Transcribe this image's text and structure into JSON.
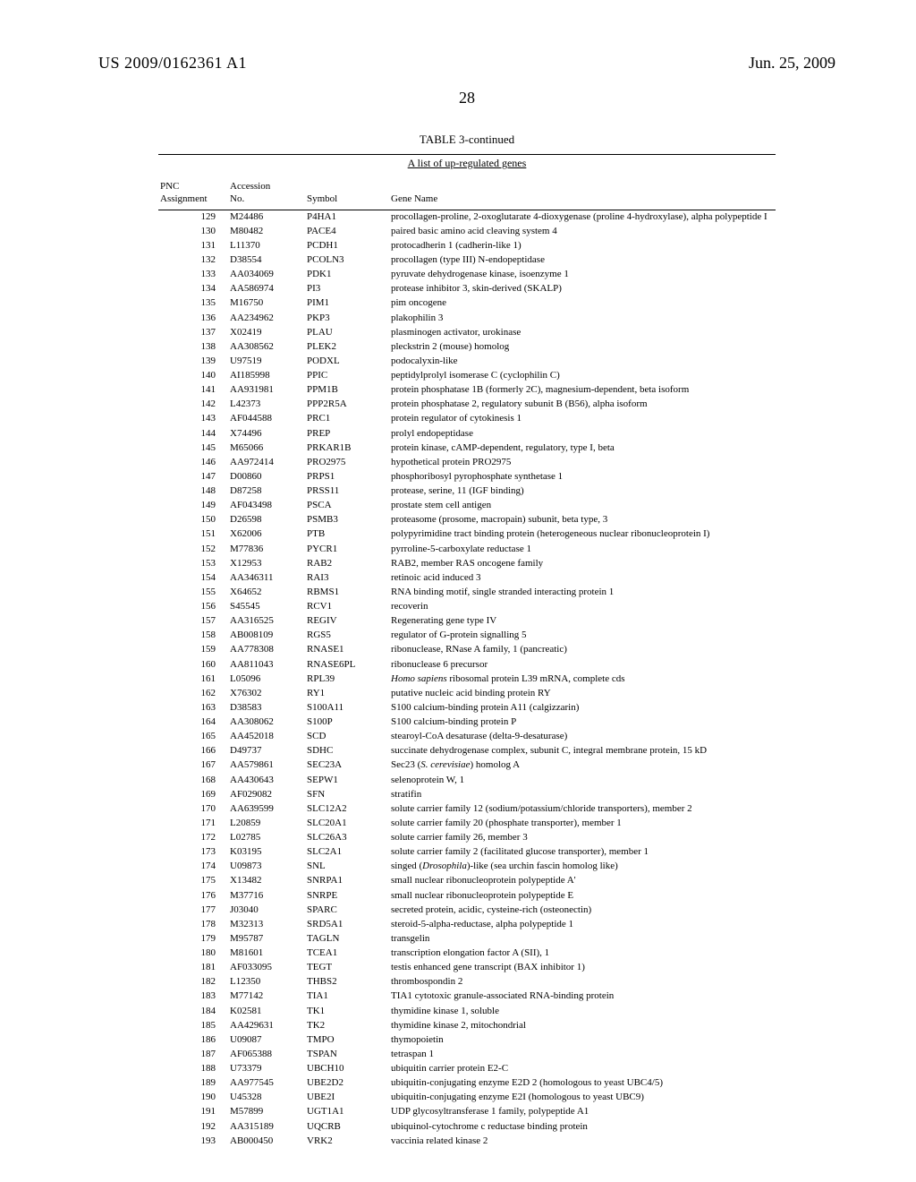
{
  "header": {
    "publication_number": "US 2009/0162361 A1",
    "date": "Jun. 25, 2009",
    "page_number": "28"
  },
  "table": {
    "title": "TABLE 3-continued",
    "subtitle": "A list of up-regulated genes",
    "columns": {
      "pnc": "PNC\nAssignment",
      "accession": "Accession\nNo.",
      "symbol": "Symbol",
      "gene_name": "Gene Name"
    },
    "rows": [
      {
        "pnc": "129",
        "acc": "M24486",
        "sym": "P4HA1",
        "name": "procollagen-proline, 2-oxoglutarate 4-dioxygenase (proline 4-hydroxylase), alpha polypeptide I"
      },
      {
        "pnc": "130",
        "acc": "M80482",
        "sym": "PACE4",
        "name": "paired basic amino acid cleaving system 4"
      },
      {
        "pnc": "131",
        "acc": "L11370",
        "sym": "PCDH1",
        "name": "protocadherin 1 (cadherin-like 1)"
      },
      {
        "pnc": "132",
        "acc": "D38554",
        "sym": "PCOLN3",
        "name": "procollagen (type III) N-endopeptidase"
      },
      {
        "pnc": "133",
        "acc": "AA034069",
        "sym": "PDK1",
        "name": "pyruvate dehydrogenase kinase, isoenzyme 1"
      },
      {
        "pnc": "134",
        "acc": "AA586974",
        "sym": "PI3",
        "name": "protease inhibitor 3, skin-derived (SKALP)"
      },
      {
        "pnc": "135",
        "acc": "M16750",
        "sym": "PIM1",
        "name": "pim oncogene"
      },
      {
        "pnc": "136",
        "acc": "AA234962",
        "sym": "PKP3",
        "name": "plakophilin 3"
      },
      {
        "pnc": "137",
        "acc": "X02419",
        "sym": "PLAU",
        "name": "plasminogen activator, urokinase"
      },
      {
        "pnc": "138",
        "acc": "AA308562",
        "sym": "PLEK2",
        "name": "pleckstrin 2 (mouse) homolog"
      },
      {
        "pnc": "139",
        "acc": "U97519",
        "sym": "PODXL",
        "name": "podocalyxin-like"
      },
      {
        "pnc": "140",
        "acc": "AI185998",
        "sym": "PPIC",
        "name": "peptidylprolyl isomerase C (cyclophilin C)"
      },
      {
        "pnc": "141",
        "acc": "AA931981",
        "sym": "PPM1B",
        "name": "protein phosphatase 1B (formerly 2C), magnesium-dependent, beta isoform"
      },
      {
        "pnc": "142",
        "acc": "L42373",
        "sym": "PPP2R5A",
        "name": "protein phosphatase 2, regulatory subunit B (B56), alpha isoform"
      },
      {
        "pnc": "143",
        "acc": "AF044588",
        "sym": "PRC1",
        "name": "protein regulator of cytokinesis 1"
      },
      {
        "pnc": "144",
        "acc": "X74496",
        "sym": "PREP",
        "name": "prolyl endopeptidase"
      },
      {
        "pnc": "145",
        "acc": "M65066",
        "sym": "PRKAR1B",
        "name": "protein kinase, cAMP-dependent, regulatory, type I, beta"
      },
      {
        "pnc": "146",
        "acc": "AA972414",
        "sym": "PRO2975",
        "name": "hypothetical protein PRO2975"
      },
      {
        "pnc": "147",
        "acc": "D00860",
        "sym": "PRPS1",
        "name": "phosphoribosyl pyrophosphate synthetase 1"
      },
      {
        "pnc": "148",
        "acc": "D87258",
        "sym": "PRSS11",
        "name": "protease, serine, 11 (IGF binding)"
      },
      {
        "pnc": "149",
        "acc": "AF043498",
        "sym": "PSCA",
        "name": "prostate stem cell antigen"
      },
      {
        "pnc": "150",
        "acc": "D26598",
        "sym": "PSMB3",
        "name": "proteasome (prosome, macropain) subunit, beta type, 3"
      },
      {
        "pnc": "151",
        "acc": "X62006",
        "sym": "PTB",
        "name": "polypyrimidine tract binding protein (heterogeneous nuclear ribonucleoprotein I)"
      },
      {
        "pnc": "152",
        "acc": "M77836",
        "sym": "PYCR1",
        "name": "pyrroline-5-carboxylate reductase 1"
      },
      {
        "pnc": "153",
        "acc": "X12953",
        "sym": "RAB2",
        "name": "RAB2, member RAS oncogene family"
      },
      {
        "pnc": "154",
        "acc": "AA346311",
        "sym": "RAI3",
        "name": "retinoic acid induced 3"
      },
      {
        "pnc": "155",
        "acc": "X64652",
        "sym": "RBMS1",
        "name": "RNA binding motif, single stranded interacting protein 1"
      },
      {
        "pnc": "156",
        "acc": "S45545",
        "sym": "RCV1",
        "name": "recoverin"
      },
      {
        "pnc": "157",
        "acc": "AA316525",
        "sym": "REGIV",
        "name": "Regenerating gene type IV"
      },
      {
        "pnc": "158",
        "acc": "AB008109",
        "sym": "RGS5",
        "name": "regulator of G-protein signalling 5"
      },
      {
        "pnc": "159",
        "acc": "AA778308",
        "sym": "RNASE1",
        "name": "ribonuclease, RNase A family, 1 (pancreatic)"
      },
      {
        "pnc": "160",
        "acc": "AA811043",
        "sym": "RNASE6PL",
        "name": "ribonuclease 6 precursor"
      },
      {
        "pnc": "161",
        "acc": "L05096",
        "sym": "RPL39",
        "name_html": "<span class='italic'>Homo sapiens</span> ribosomal protein L39 mRNA, complete cds"
      },
      {
        "pnc": "162",
        "acc": "X76302",
        "sym": "RY1",
        "name": "putative nucleic acid binding protein RY"
      },
      {
        "pnc": "163",
        "acc": "D38583",
        "sym": "S100A11",
        "name": "S100 calcium-binding protein A11 (calgizzarin)"
      },
      {
        "pnc": "164",
        "acc": "AA308062",
        "sym": "S100P",
        "name": "S100 calcium-binding protein P"
      },
      {
        "pnc": "165",
        "acc": "AA452018",
        "sym": "SCD",
        "name": "stearoyl-CoA desaturase (delta-9-desaturase)"
      },
      {
        "pnc": "166",
        "acc": "D49737",
        "sym": "SDHC",
        "name": "succinate dehydrogenase complex, subunit C, integral membrane protein, 15 kD"
      },
      {
        "pnc": "167",
        "acc": "AA579861",
        "sym": "SEC23A",
        "name_html": "Sec23 (<span class='italic'>S. cerevisiae</span>) homolog A"
      },
      {
        "pnc": "168",
        "acc": "AA430643",
        "sym": "SEPW1",
        "name": "selenoprotein W, 1"
      },
      {
        "pnc": "169",
        "acc": "AF029082",
        "sym": "SFN",
        "name": "stratifin"
      },
      {
        "pnc": "170",
        "acc": "AA639599",
        "sym": "SLC12A2",
        "name": "solute carrier family 12 (sodium/potassium/chloride transporters), member 2"
      },
      {
        "pnc": "171",
        "acc": "L20859",
        "sym": "SLC20A1",
        "name": "solute carrier family 20 (phosphate transporter), member 1"
      },
      {
        "pnc": "172",
        "acc": "L02785",
        "sym": "SLC26A3",
        "name": "solute carrier family 26, member 3"
      },
      {
        "pnc": "173",
        "acc": "K03195",
        "sym": "SLC2A1",
        "name": "solute carrier family 2 (facilitated glucose transporter), member 1"
      },
      {
        "pnc": "174",
        "acc": "U09873",
        "sym": "SNL",
        "name_html": "singed (<span class='italic'>Drosophila</span>)-like (sea urchin fascin homolog like)"
      },
      {
        "pnc": "175",
        "acc": "X13482",
        "sym": "SNRPA1",
        "name": "small nuclear ribonucleoprotein polypeptide A'"
      },
      {
        "pnc": "176",
        "acc": "M37716",
        "sym": "SNRPE",
        "name": "small nuclear ribonucleoprotein polypeptide E"
      },
      {
        "pnc": "177",
        "acc": "J03040",
        "sym": "SPARC",
        "name": "secreted protein, acidic, cysteine-rich (osteonectin)"
      },
      {
        "pnc": "178",
        "acc": "M32313",
        "sym": "SRD5A1",
        "name": "steroid-5-alpha-reductase, alpha polypeptide 1"
      },
      {
        "pnc": "179",
        "acc": "M95787",
        "sym": "TAGLN",
        "name": "transgelin"
      },
      {
        "pnc": "180",
        "acc": "M81601",
        "sym": "TCEA1",
        "name": "transcription elongation factor A (SII), 1"
      },
      {
        "pnc": "181",
        "acc": "AF033095",
        "sym": "TEGT",
        "name": "testis enhanced gene transcript (BAX inhibitor 1)"
      },
      {
        "pnc": "182",
        "acc": "L12350",
        "sym": "THBS2",
        "name": "thrombospondin 2"
      },
      {
        "pnc": "183",
        "acc": "M77142",
        "sym": "TIA1",
        "name": "TIA1 cytotoxic granule-associated RNA-binding protein"
      },
      {
        "pnc": "184",
        "acc": "K02581",
        "sym": "TK1",
        "name": "thymidine kinase 1, soluble"
      },
      {
        "pnc": "185",
        "acc": "AA429631",
        "sym": "TK2",
        "name": "thymidine kinase 2, mitochondrial"
      },
      {
        "pnc": "186",
        "acc": "U09087",
        "sym": "TMPO",
        "name": "thymopoietin"
      },
      {
        "pnc": "187",
        "acc": "AF065388",
        "sym": "TSPAN",
        "name": "tetraspan 1"
      },
      {
        "pnc": "188",
        "acc": "U73379",
        "sym": "UBCH10",
        "name": "ubiquitin carrier protein E2-C"
      },
      {
        "pnc": "189",
        "acc": "AA977545",
        "sym": "UBE2D2",
        "name": "ubiquitin-conjugating enzyme E2D 2 (homologous to yeast UBC4/5)"
      },
      {
        "pnc": "190",
        "acc": "U45328",
        "sym": "UBE2I",
        "name": "ubiquitin-conjugating enzyme E2I (homologous to yeast UBC9)"
      },
      {
        "pnc": "191",
        "acc": "M57899",
        "sym": "UGT1A1",
        "name": "UDP glycosyltransferase 1 family, polypeptide A1"
      },
      {
        "pnc": "192",
        "acc": "AA315189",
        "sym": "UQCRB",
        "name": "ubiquinol-cytochrome c reductase binding protein"
      },
      {
        "pnc": "193",
        "acc": "AB000450",
        "sym": "VRK2",
        "name": "vaccinia related kinase 2"
      }
    ]
  }
}
